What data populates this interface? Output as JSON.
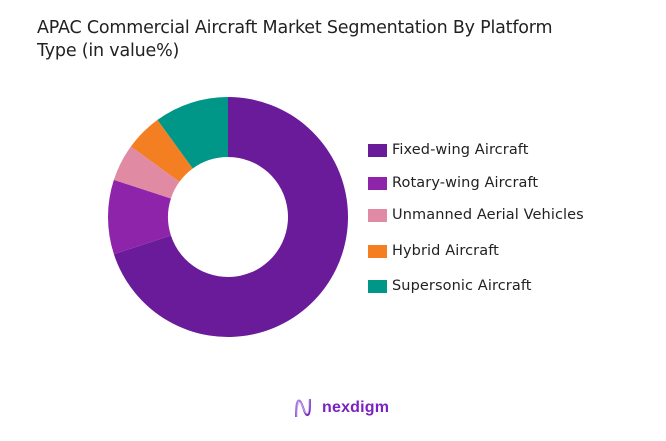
{
  "title": {
    "line1": "APAC Commercial Aircraft Market Segmentation By Platform",
    "line2": "Type (in value%)"
  },
  "chart_data": {
    "type": "pie",
    "subtype": "donut",
    "title": "APAC Commercial Aircraft Market Segmentation By Platform Type (in value%)",
    "categories": [
      "Fixed-wing Aircraft",
      "Rotary-wing Aircraft",
      "Unmanned Aerial Vehicles",
      "Hybrid Aircraft",
      "Supersonic Aircraft"
    ],
    "values": [
      70,
      10,
      5,
      5,
      10
    ],
    "colors": [
      "#6a1b9a",
      "#8e24aa",
      "#e08aa4",
      "#f47f22",
      "#009688"
    ],
    "unit": "%",
    "start_angle": "12 o'clock, clockwise",
    "legend_position": "right",
    "data_labels": false
  },
  "legend": {
    "items": [
      {
        "label": "Fixed-wing Aircraft",
        "color": "#6a1b9a"
      },
      {
        "label": "Rotary-wing Aircraft",
        "color": "#8e24aa"
      },
      {
        "label": "Unmanned Aerial Vehicles",
        "color": "#e08aa4"
      },
      {
        "label": "Hybrid Aircraft",
        "color": "#f47f22"
      },
      {
        "label": "Supersonic Aircraft",
        "color": "#009688"
      }
    ]
  },
  "branding": {
    "logo_text": "nexdigm",
    "logo_icon": "nexdigm-wave-n-icon",
    "color": "#7a22c2"
  }
}
